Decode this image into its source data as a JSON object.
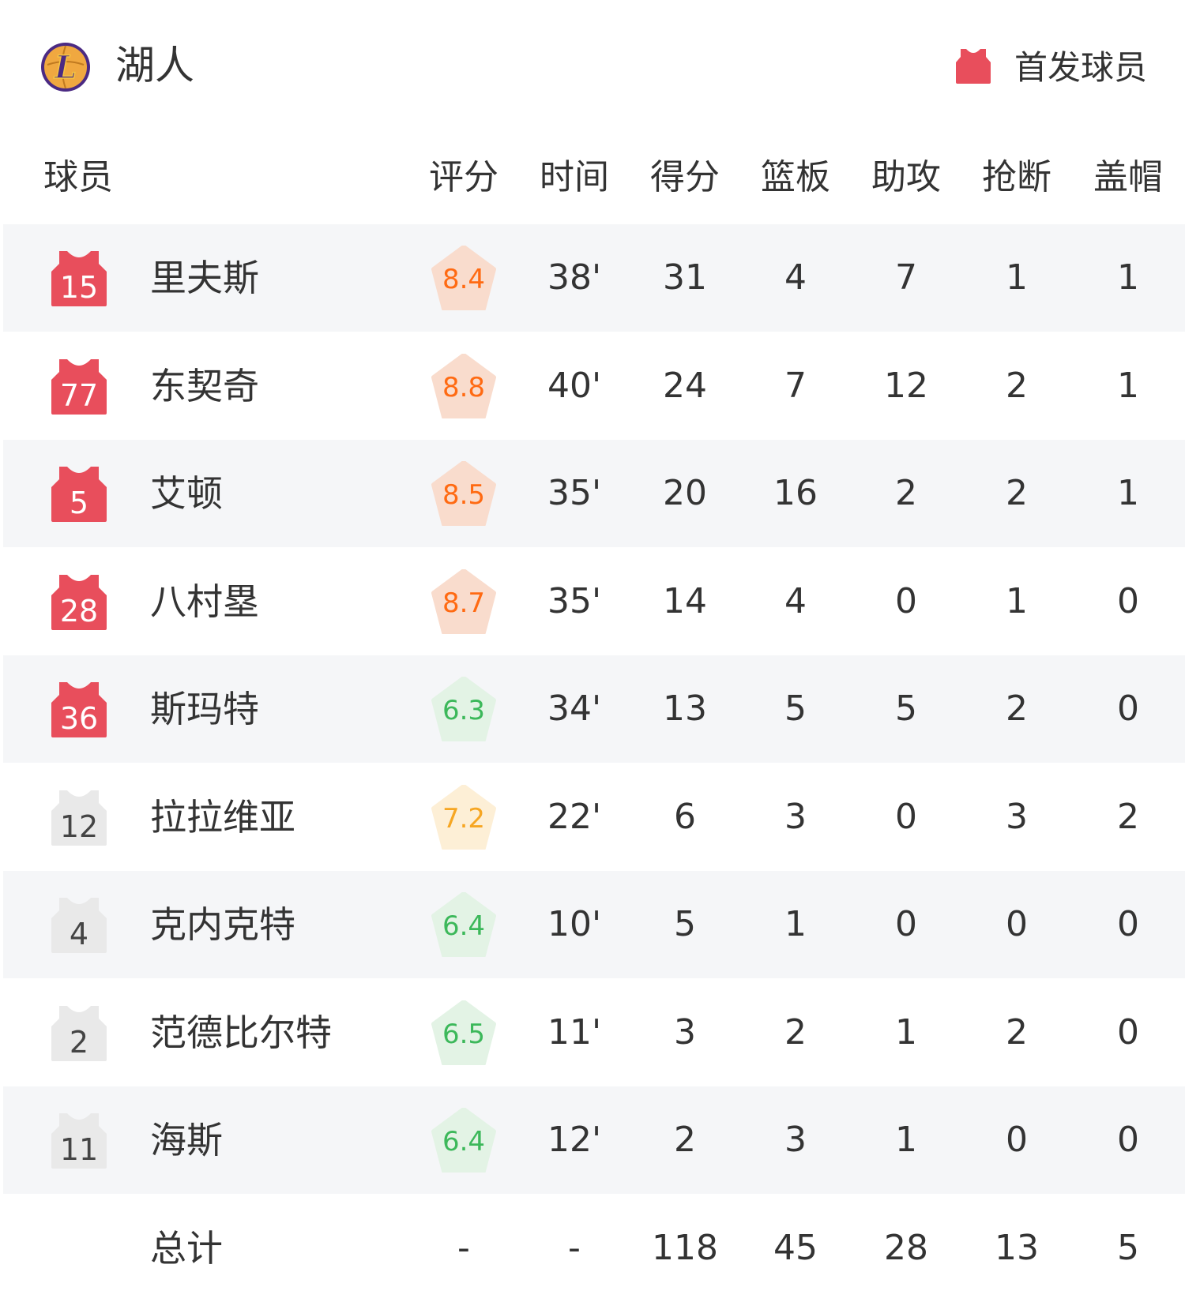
{
  "team": {
    "name": "湖人",
    "logo_text": "L"
  },
  "legend": {
    "label": "首发球员",
    "icon": "jersey-icon",
    "color": "#e84e5c"
  },
  "columns": [
    "球员",
    "评分",
    "时间",
    "得分",
    "篮板",
    "助攻",
    "抢断",
    "盖帽"
  ],
  "colors": {
    "starter_jersey": "#e84e5c",
    "bench_jersey": "#e9e9e9",
    "rating_high_bg": "#f9dccd",
    "rating_high_text": "#ff6a12",
    "rating_mid_bg": "#fdefd6",
    "rating_mid_text": "#f6a623",
    "rating_low_bg": "#e3f3e5",
    "rating_low_text": "#3cb85a",
    "row_alt": "#f5f6f8"
  },
  "players": [
    {
      "number": "15",
      "name": "里夫斯",
      "starter": true,
      "rating": "8.4",
      "level": "high",
      "time": "38'",
      "pts": "31",
      "reb": "4",
      "ast": "7",
      "stl": "1",
      "blk": "1"
    },
    {
      "number": "77",
      "name": "东契奇",
      "starter": true,
      "rating": "8.8",
      "level": "high",
      "time": "40'",
      "pts": "24",
      "reb": "7",
      "ast": "12",
      "stl": "2",
      "blk": "1"
    },
    {
      "number": "5",
      "name": "艾顿",
      "starter": true,
      "rating": "8.5",
      "level": "high",
      "time": "35'",
      "pts": "20",
      "reb": "16",
      "ast": "2",
      "stl": "2",
      "blk": "1"
    },
    {
      "number": "28",
      "name": "八村塁",
      "starter": true,
      "rating": "8.7",
      "level": "high",
      "time": "35'",
      "pts": "14",
      "reb": "4",
      "ast": "0",
      "stl": "1",
      "blk": "0"
    },
    {
      "number": "36",
      "name": "斯玛特",
      "starter": true,
      "rating": "6.3",
      "level": "low",
      "time": "34'",
      "pts": "13",
      "reb": "5",
      "ast": "5",
      "stl": "2",
      "blk": "0"
    },
    {
      "number": "12",
      "name": "拉拉维亚",
      "starter": false,
      "rating": "7.2",
      "level": "mid",
      "time": "22'",
      "pts": "6",
      "reb": "3",
      "ast": "0",
      "stl": "3",
      "blk": "2"
    },
    {
      "number": "4",
      "name": "克内克特",
      "starter": false,
      "rating": "6.4",
      "level": "low",
      "time": "10'",
      "pts": "5",
      "reb": "1",
      "ast": "0",
      "stl": "0",
      "blk": "0"
    },
    {
      "number": "2",
      "name": "范德比尔特",
      "starter": false,
      "rating": "6.5",
      "level": "low",
      "time": "11'",
      "pts": "3",
      "reb": "2",
      "ast": "1",
      "stl": "2",
      "blk": "0"
    },
    {
      "number": "11",
      "name": "海斯",
      "starter": false,
      "rating": "6.4",
      "level": "low",
      "time": "12'",
      "pts": "2",
      "reb": "3",
      "ast": "1",
      "stl": "0",
      "blk": "0"
    }
  ],
  "totals": {
    "label": "总计",
    "rating": "-",
    "time": "-",
    "pts": "118",
    "reb": "45",
    "ast": "28",
    "stl": "13",
    "blk": "5"
  }
}
